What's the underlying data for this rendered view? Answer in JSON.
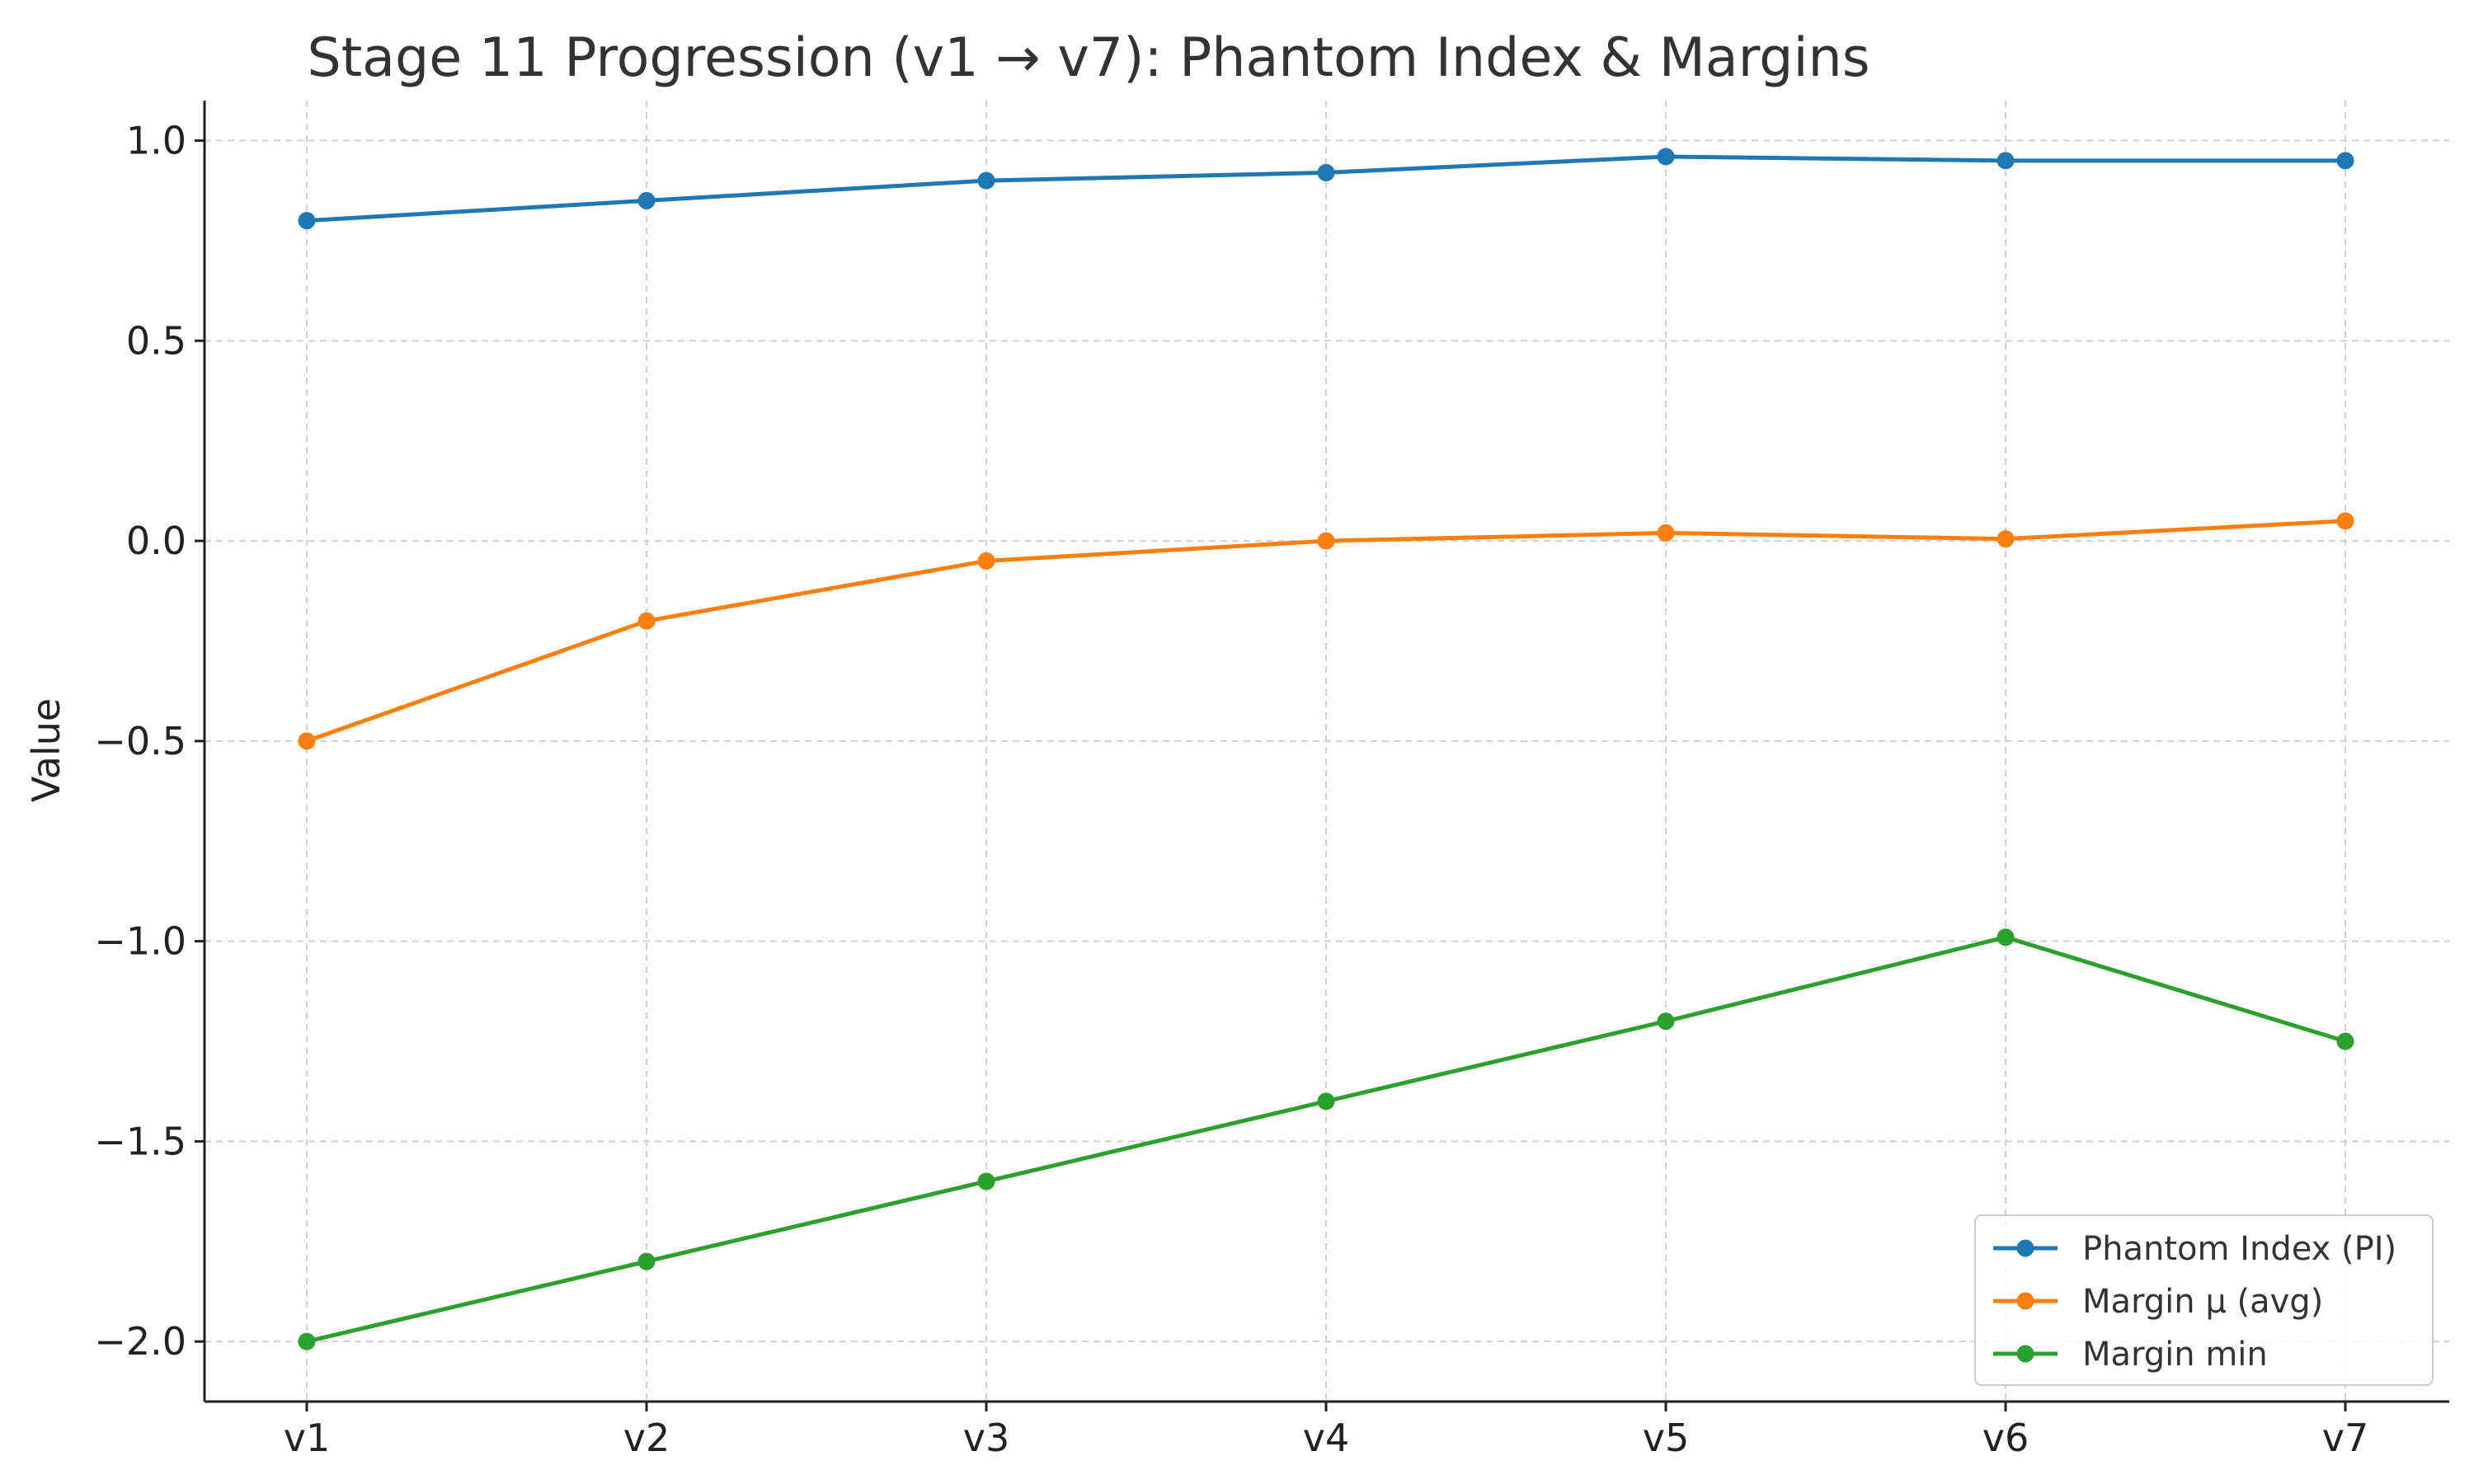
{
  "chart_data": {
    "type": "line",
    "title": "Stage 11 Progression (v1 → v7): Phantom Index & Margins",
    "xlabel": "",
    "ylabel": "Value",
    "categories": [
      "v1",
      "v2",
      "v3",
      "v4",
      "v5",
      "v6",
      "v7"
    ],
    "ylim": [
      -2.15,
      1.1
    ],
    "yticks": [
      1.0,
      0.5,
      0.0,
      -0.5,
      -1.0,
      -1.5,
      -2.0
    ],
    "ytick_labels": [
      "1.0",
      "0.5",
      "0.0",
      "−0.5",
      "−1.0",
      "−1.5",
      "−2.0"
    ],
    "grid": true,
    "legend_position": "bottom-right",
    "series": [
      {
        "name": "Phantom Index (PI)",
        "color": "#1f77b4",
        "values": [
          0.8,
          0.85,
          0.9,
          0.92,
          0.96,
          0.95,
          0.95
        ]
      },
      {
        "name": "Margin μ (avg)",
        "color": "#ff7f0e",
        "values": [
          -0.5,
          -0.2,
          -0.05,
          0.0,
          0.02,
          0.005,
          0.05
        ]
      },
      {
        "name": "Margin min",
        "color": "#2ca02c",
        "values": [
          -2.0,
          -1.8,
          -1.6,
          -1.4,
          -1.2,
          -0.99,
          -1.25
        ]
      }
    ]
  }
}
